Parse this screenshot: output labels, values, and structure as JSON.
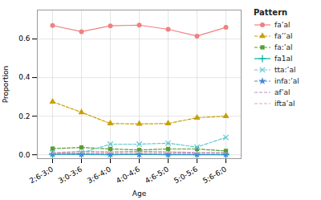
{
  "chart_data": {
    "type": "line",
    "xlabel": "Age",
    "ylabel": "Proportion",
    "categories": [
      "2;6-3;0",
      "3;0-3;6",
      "3;6-4;0",
      "4;0-4;6",
      "4;6-5;0",
      "5;0-5;6",
      "5;6-6;0"
    ],
    "series": [
      {
        "name": "fa’al",
        "color": "#F08080",
        "marker": "circle",
        "line_style": "solid",
        "values": [
          0.67,
          0.638,
          0.668,
          0.672,
          0.65,
          0.615,
          0.66
        ]
      },
      {
        "name": "fa’’al",
        "color": "#C8A000",
        "marker": "triangle",
        "line_style": "dashed",
        "values": [
          0.275,
          0.22,
          0.162,
          0.16,
          0.162,
          0.192,
          0.2
        ]
      },
      {
        "name": "fa:’al",
        "color": "#5A9E30",
        "marker": "square",
        "line_style": "dashed",
        "values": [
          0.032,
          0.038,
          0.03,
          0.025,
          0.03,
          0.03,
          0.02
        ]
      },
      {
        "name": "fa1al",
        "color": "#00B0A0",
        "marker": "plus",
        "line_style": "solid",
        "values": [
          0.002,
          0.002,
          0.0,
          0.002,
          0.0,
          0.0,
          0.0
        ]
      },
      {
        "name": "tta:’al",
        "color": "#60C8D0",
        "marker": "times",
        "line_style": "dashed",
        "values": [
          0.01,
          0.01,
          0.055,
          0.055,
          0.06,
          0.04,
          0.09
        ]
      },
      {
        "name": "infa:’al",
        "color": "#4488D8",
        "marker": "star",
        "line_style": "dashed",
        "values": [
          0.003,
          0.003,
          0.002,
          0.002,
          0.002,
          0.002,
          0.002
        ]
      },
      {
        "name": "af’al",
        "color": "#C090C0",
        "line_style": "dashed",
        "values": [
          0.01,
          0.018,
          0.015,
          0.018,
          0.015,
          0.012,
          0.012
        ]
      },
      {
        "name": "ifta’al",
        "color": "#D8A8B8",
        "line_style": "dashed",
        "values": [
          0.008,
          0.01,
          0.01,
          0.012,
          0.01,
          0.008,
          0.008
        ]
      }
    ],
    "ylim": [
      -0.02,
      0.75
    ],
    "yticks": [
      {
        "value": 0,
        "label": "0.0"
      },
      0.2,
      0.4,
      0.6
    ],
    "grid": true,
    "legend": "right",
    "legend_title": "Pattern"
  }
}
